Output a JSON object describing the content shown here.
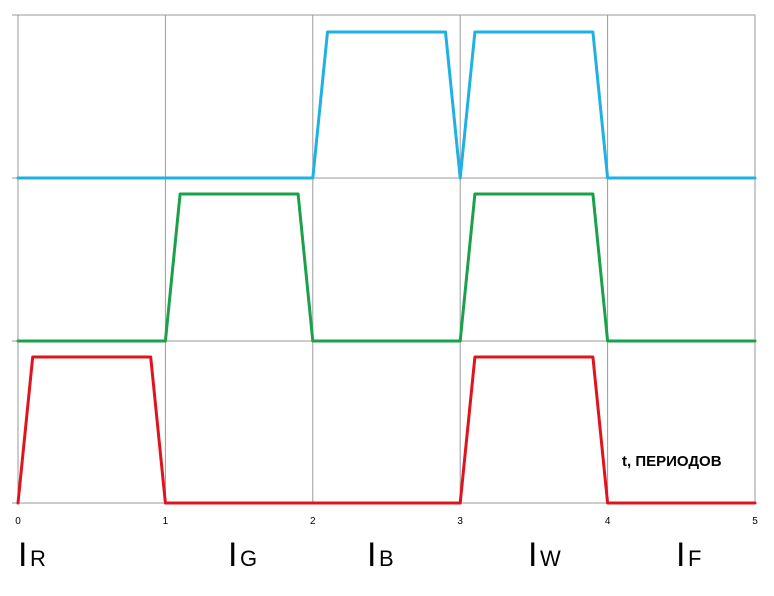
{
  "chart_data": {
    "type": "line",
    "x_axis": {
      "title": "t, ПЕРИОДОВ",
      "range": [
        0,
        5
      ],
      "ticks": [
        "0",
        "1",
        "2",
        "3",
        "4",
        "5"
      ]
    },
    "grid": true,
    "legend": "none",
    "phase_labels": [
      {
        "main": "I",
        "sub": "R"
      },
      {
        "main": "I",
        "sub": "G"
      },
      {
        "main": "I",
        "sub": "B"
      },
      {
        "main": "I",
        "sub": "W"
      },
      {
        "main": "I",
        "sub": "F"
      }
    ],
    "series": [
      {
        "color": "#e0141c",
        "x": [
          0,
          0.1,
          0.9,
          1,
          3,
          3.1,
          3.9,
          4,
          5
        ],
        "y": [
          0,
          1,
          1,
          0,
          0,
          1,
          1,
          0,
          0
        ]
      },
      {
        "color": "#1aa14a",
        "x": [
          0,
          1,
          1.1,
          1.9,
          2,
          3,
          3.1,
          3.9,
          4,
          5
        ],
        "y": [
          0,
          0,
          1,
          1,
          0,
          0,
          1,
          1,
          0,
          0
        ]
      },
      {
        "color": "#1fb1e3",
        "x": [
          0,
          2,
          2.1,
          2.9,
          3,
          3.1,
          3.9,
          4,
          5
        ],
        "y": [
          0,
          0,
          1,
          1,
          0,
          1,
          1,
          0,
          0
        ]
      }
    ]
  }
}
